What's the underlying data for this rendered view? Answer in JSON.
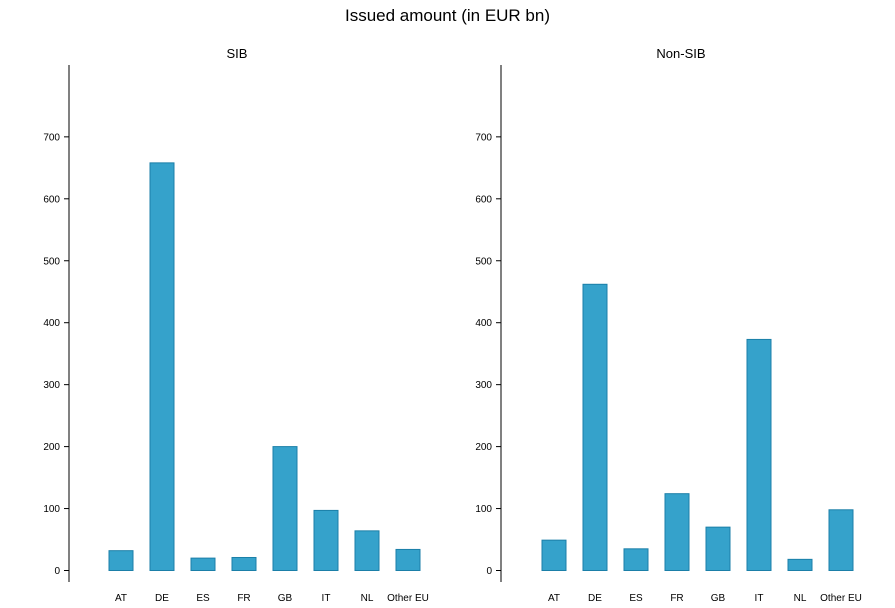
{
  "figure": {
    "title": "Issued amount (in EUR bn)"
  },
  "colors": {
    "bar_fill": "#35A2CB",
    "bar_stroke": "#1B7FA8",
    "axis": "#000000"
  },
  "chart_data": [
    {
      "type": "bar",
      "title": "SIB",
      "categories": [
        "AT",
        "DE",
        "ES",
        "FR",
        "GB",
        "IT",
        "NL",
        "Other EU"
      ],
      "values": [
        32,
        658,
        20,
        21,
        200,
        97,
        64,
        34
      ],
      "ylim": [
        0,
        800
      ],
      "yticks": [
        0,
        100,
        200,
        300,
        400,
        500,
        600,
        700
      ],
      "grid": false
    },
    {
      "type": "bar",
      "title": "Non-SIB",
      "categories": [
        "AT",
        "DE",
        "ES",
        "FR",
        "GB",
        "IT",
        "NL",
        "Other EU"
      ],
      "values": [
        49,
        462,
        35,
        124,
        70,
        373,
        18,
        98
      ],
      "ylim": [
        0,
        800
      ],
      "yticks": [
        0,
        100,
        200,
        300,
        400,
        500,
        600,
        700
      ],
      "grid": false
    }
  ]
}
